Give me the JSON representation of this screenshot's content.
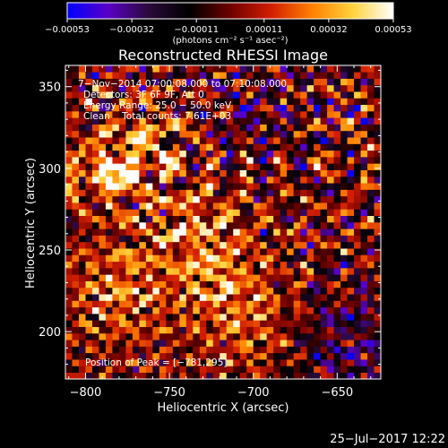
{
  "chart_data": {
    "type": "heatmap",
    "title": "Reconstructed RHESSI Image",
    "xlabel": "Heliocentric X (arcsec)",
    "ylabel": "Heliocentric Y (arcsec)",
    "xlim": [
      -812,
      -624
    ],
    "ylim": [
      171,
      363
    ],
    "x_ticks": [
      {
        "value": -800,
        "label": "−800"
      },
      {
        "value": -750,
        "label": "−750"
      },
      {
        "value": -700,
        "label": "−700"
      },
      {
        "value": -650,
        "label": "−650"
      }
    ],
    "y_ticks": [
      {
        "value": 200,
        "label": "200"
      },
      {
        "value": 250,
        "label": "250"
      },
      {
        "value": 300,
        "label": "300"
      },
      {
        "value": 350,
        "label": "350"
      }
    ],
    "colorbar": {
      "range": [
        -0.00053,
        0.00053
      ],
      "units": "(photons cm⁻² s⁻¹ asec⁻²)",
      "ticks": [
        {
          "value": -0.00053,
          "label": "−0.00053"
        },
        {
          "value": -0.00032,
          "label": "−0.00032"
        },
        {
          "value": -0.00011,
          "label": "−0.00011"
        },
        {
          "value": 0.00011,
          "label": "0.00011"
        },
        {
          "value": 0.00032,
          "label": "0.00032"
        },
        {
          "value": 0.00053,
          "label": "0.00053"
        }
      ],
      "colormap": [
        "#0000ff",
        "#5a00c8",
        "#2a0a3a",
        "#000000",
        "#6e0000",
        "#d21e00",
        "#ff8000",
        "#ffd23c",
        "#ffffff"
      ]
    },
    "annotations": [
      "7−Nov−2014 07:00:08.000 to 07:10:08.000",
      "Detectors: 3F 6F 9F, Att 0",
      "Energy Range: 25.0 − 50.0 keV",
      "Clean    Total counts: 7.61E+03"
    ],
    "peak_label": "Position of Peak = [−781,295]",
    "peak_position": [
      -781,
      295
    ],
    "timestamp": "25−Jul−2017 12:22"
  }
}
